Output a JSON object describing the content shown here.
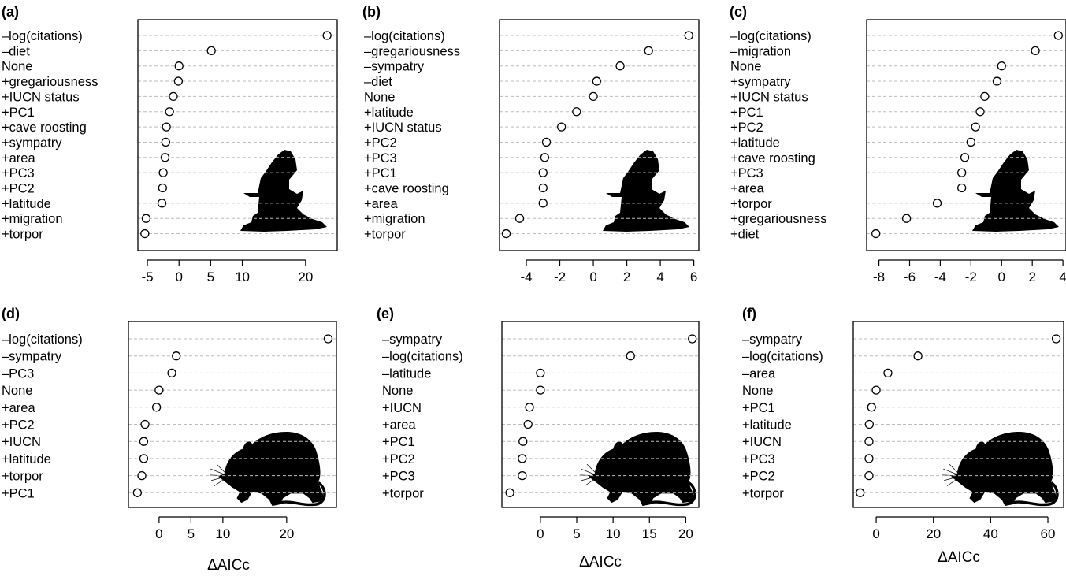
{
  "figure": {
    "panel_labels": [
      "(a)",
      "(b)",
      "(c)",
      "(d)",
      "(e)",
      "(f)"
    ],
    "x_axis_label": "ΔAICc",
    "colors": {
      "ink": "#000000",
      "grid": "#bdbdbd",
      "background": "#ffffff"
    },
    "silhouettes": [
      "bat-silhouette",
      "bat-silhouette",
      "bat-silhouette",
      "rat-silhouette",
      "rat-silhouette",
      "rat-silhouette"
    ]
  },
  "chart_data": [
    {
      "type": "scatter",
      "panel": "(a)",
      "categories": [
        "–log(citations)",
        "–diet",
        "None",
        "+gregariousness",
        "+IUCN status",
        "+PC1",
        "+cave roosting",
        "+sympatry",
        "+area",
        "+PC3",
        "+PC2",
        "+latitude",
        "+migration",
        "+torpor"
      ],
      "values": [
        23.4,
        5.1,
        0,
        -0.1,
        -0.9,
        -1.5,
        -2.0,
        -2.1,
        -2.2,
        -2.5,
        -2.6,
        -2.7,
        -5.2,
        -5.4
      ],
      "xticks": [
        "-5",
        "0",
        "5",
        "10",
        "20"
      ],
      "xtick_values": [
        -5,
        0,
        5,
        10,
        20
      ],
      "xlim": [
        -6.5,
        25.0
      ],
      "xlabel": "",
      "grid": true
    },
    {
      "type": "scatter",
      "panel": "(b)",
      "categories": [
        "–log(citations)",
        "–gregariousness",
        "–sympatry",
        "–diet",
        "None",
        "+latitude",
        "+IUCN status",
        "+PC2",
        "+PC3",
        "+PC1",
        "+cave roosting",
        "+area",
        "+migration",
        "+torpor"
      ],
      "values": [
        5.7,
        3.3,
        1.6,
        0.2,
        0,
        -1.0,
        -1.9,
        -2.8,
        -2.9,
        -3.0,
        -3.0,
        -3.0,
        -4.4,
        -5.2
      ],
      "xticks": [
        "-4",
        "-2",
        "0",
        "2",
        "4",
        "6"
      ],
      "xtick_values": [
        -4,
        -2,
        0,
        2,
        4,
        6
      ],
      "xlim": [
        -5.6,
        6.3
      ],
      "xlabel": "",
      "grid": true
    },
    {
      "type": "scatter",
      "panel": "(c)",
      "categories": [
        "–log(citations)",
        "–migration",
        "None",
        "+sympatry",
        "+IUCN status",
        "+PC1",
        "+PC2",
        "+latitude",
        "+cave roosting",
        "+PC3",
        "+area",
        "+torpor",
        "+gregariousness",
        "+diet"
      ],
      "values": [
        3.7,
        2.2,
        0,
        -0.3,
        -1.1,
        -1.4,
        -1.7,
        -2.0,
        -2.4,
        -2.6,
        -2.6,
        -4.2,
        -6.2,
        -8.2
      ],
      "xticks": [
        "-8",
        "-6",
        "-4",
        "-2",
        "0",
        "2",
        "4"
      ],
      "xtick_values": [
        -8,
        -6,
        -4,
        -2,
        0,
        2,
        4
      ],
      "xlim": [
        -8.8,
        4.2
      ],
      "xlabel": "",
      "grid": true
    },
    {
      "type": "scatter",
      "panel": "(d)",
      "categories": [
        "–log(citations)",
        "–sympatry",
        "–PC3",
        "None",
        "+area",
        "+PC2",
        "+IUCN",
        "+latitude",
        "+torpor",
        "+PC1"
      ],
      "values": [
        26.5,
        2.7,
        2.0,
        0,
        -0.4,
        -2.2,
        -2.4,
        -2.4,
        -2.7,
        -3.4
      ],
      "xticks": [
        "0",
        "5",
        "10",
        "20"
      ],
      "xtick_values": [
        0,
        5,
        10,
        20
      ],
      "xlim": [
        -4.8,
        27.8
      ],
      "xlabel": "ΔAICc",
      "grid": true
    },
    {
      "type": "scatter",
      "panel": "(e)",
      "categories": [
        "–sympatry",
        "–log(citations)",
        "–latitude",
        "None",
        "+IUCN",
        "+area",
        "+PC1",
        "+PC2",
        "+PC3",
        "+torpor"
      ],
      "values": [
        20.9,
        12.4,
        0,
        0,
        -1.5,
        -1.7,
        -2.4,
        -2.5,
        -2.5,
        -4.2
      ],
      "xticks": [
        "0",
        "5",
        "10",
        "15",
        "20"
      ],
      "xtick_values": [
        0,
        5,
        10,
        15,
        20
      ],
      "xlim": [
        -5.3,
        21.8
      ],
      "xlabel": "ΔAICc",
      "grid": true
    },
    {
      "type": "scatter",
      "panel": "(f)",
      "categories": [
        "–sympatry",
        "–log(citations)",
        "–area",
        "None",
        "+PC1",
        "+latitude",
        "+IUCN",
        "+PC3",
        "+PC2",
        "+torpor"
      ],
      "values": [
        62.9,
        14.6,
        4.1,
        0,
        -1.6,
        -2.4,
        -2.5,
        -2.5,
        -2.5,
        -5.6
      ],
      "xticks": [
        "0",
        "20",
        "40",
        "60"
      ],
      "xtick_values": [
        0,
        20,
        40,
        60
      ],
      "xlim": [
        -8.0,
        65.5
      ],
      "xlabel": "ΔAICc",
      "grid": true
    }
  ]
}
